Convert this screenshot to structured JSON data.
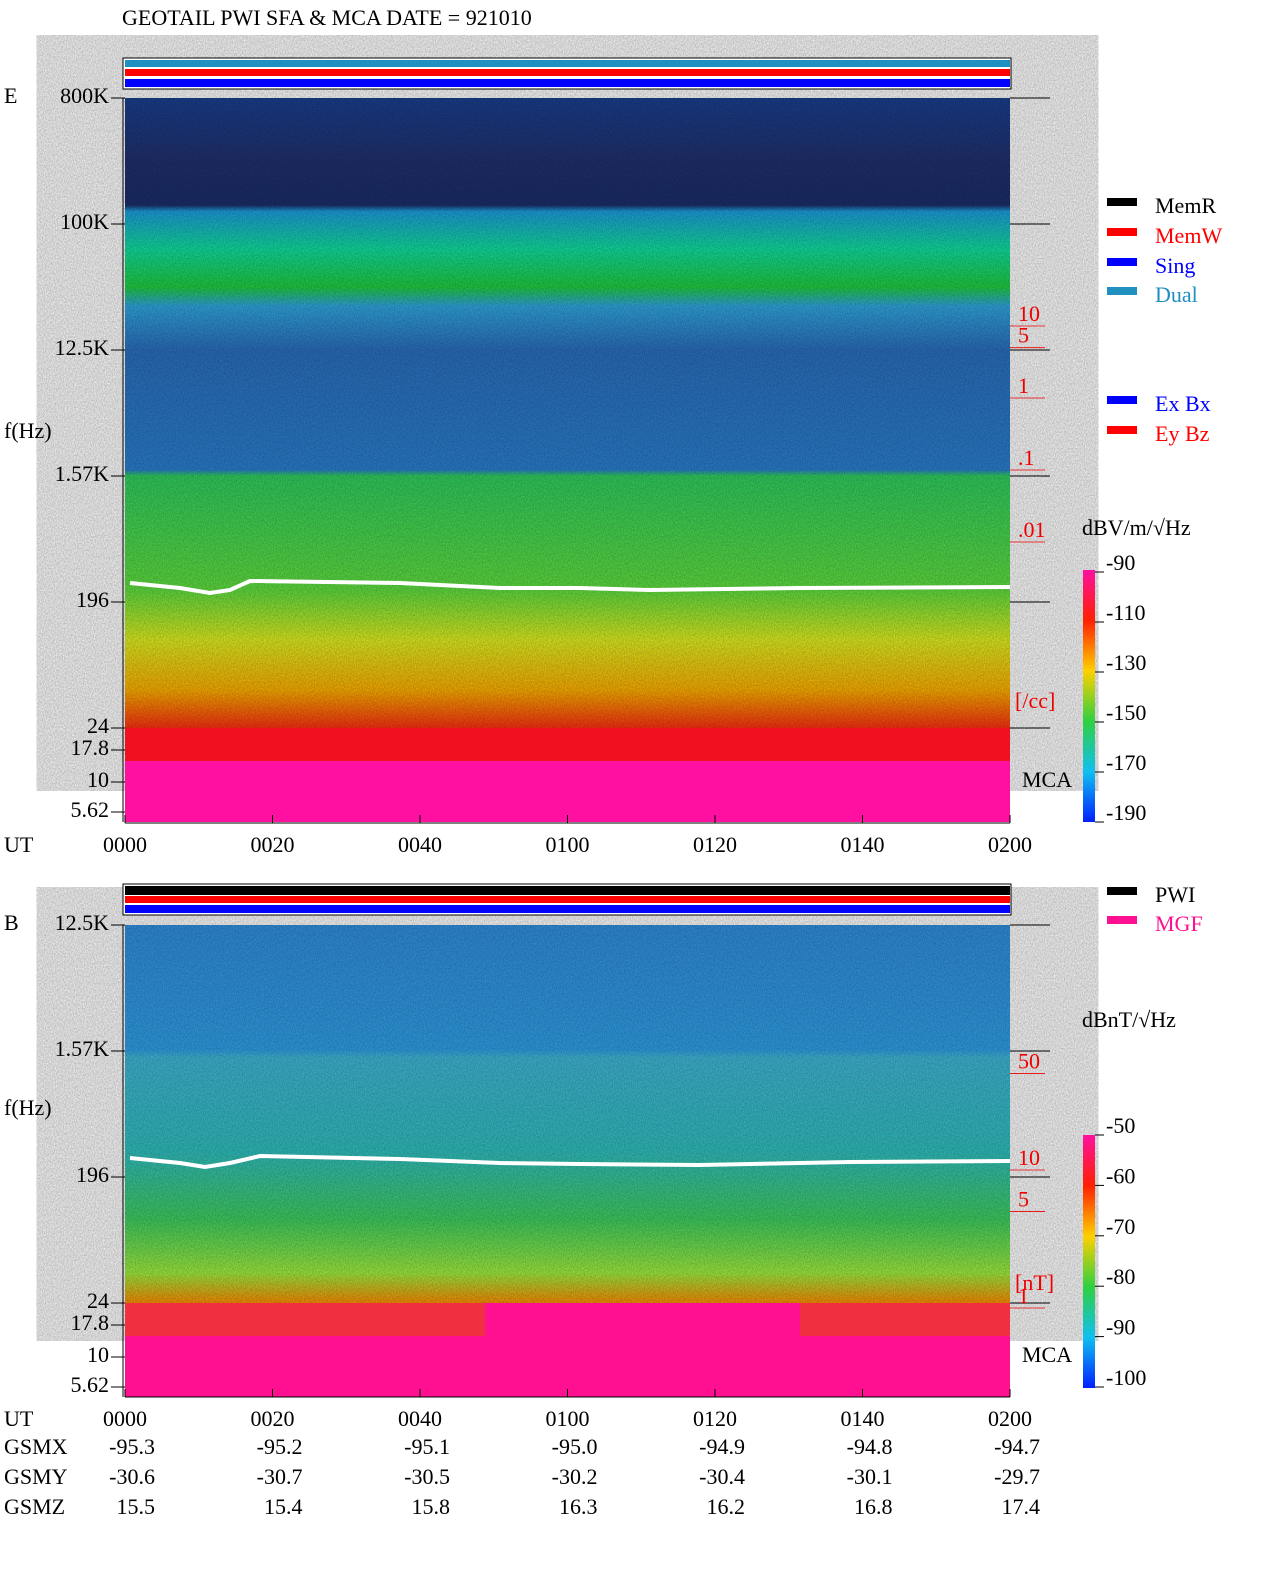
{
  "title": "GEOTAIL  PWI SFA & MCA   DATE = 921010",
  "x_label": "UT",
  "x_ticks": [
    "0000",
    "0020",
    "0040",
    "0100",
    "0120",
    "0140",
    "0200"
  ],
  "panels": [
    {
      "component": "E",
      "y_label": "f(Hz)",
      "y_ticks": [
        "800K",
        "100K",
        "12.5K",
        "1.57K",
        "196",
        "24",
        "17.8",
        "10",
        "5.62"
      ],
      "mca_label": "MCA",
      "density": {
        "unit": "[/cc]",
        "ticks": [
          10,
          5,
          1,
          {
            "value": 0.1,
            "label": ".1"
          },
          {
            "value": 0.01,
            "label": ".01"
          }
        ]
      },
      "legend": [
        {
          "name": "MemR",
          "color": "#000000"
        },
        {
          "name": "MemW",
          "color": "#ff0000"
        },
        {
          "name": "Sing",
          "color": "#0000ff"
        },
        {
          "name": "Dual",
          "color": "#2090c0"
        }
      ],
      "antenna_legend": [
        {
          "name": "Ex Bx",
          "color": "#0000ff"
        },
        {
          "name": "Ey Bz",
          "color": "#ff0000"
        }
      ],
      "colorbar": {
        "label": "dBV/m/√Hz",
        "lim": [
          -190,
          -90
        ],
        "ticks": [
          -90,
          -110,
          -130,
          -150,
          -170,
          -190
        ]
      }
    },
    {
      "component": "B",
      "y_label": "f(Hz)",
      "y_ticks": [
        "12.5K",
        "1.57K",
        "196",
        "24",
        "17.8",
        "10",
        "5.62"
      ],
      "mca_label": "MCA",
      "density": {
        "unit": "[nT]",
        "ticks": [
          50,
          10,
          5,
          1
        ]
      },
      "legend": [
        {
          "name": "PWI",
          "color": "#000000"
        },
        {
          "name": "MGF",
          "color": "#ff1090"
        }
      ],
      "colorbar": {
        "label": "dBnT/√Hz",
        "lim": [
          -100,
          -50
        ],
        "ticks": [
          -50,
          -60,
          -70,
          -80,
          -90,
          -100
        ]
      }
    }
  ],
  "orbit": [
    {
      "name": "GSMX",
      "values": [
        "-95.3",
        "-95.2",
        "-95.1",
        "-95.0",
        "-94.9",
        "-94.8",
        "-94.7"
      ]
    },
    {
      "name": "GSMY",
      "values": [
        "-30.6",
        "-30.7",
        "-30.5",
        "-30.2",
        "-30.4",
        "-30.1",
        "-29.7"
      ]
    },
    {
      "name": "GSMZ",
      "values": [
        "15.5",
        "15.4",
        "15.8",
        "16.3",
        "16.2",
        "16.8",
        "17.4"
      ]
    }
  ]
}
